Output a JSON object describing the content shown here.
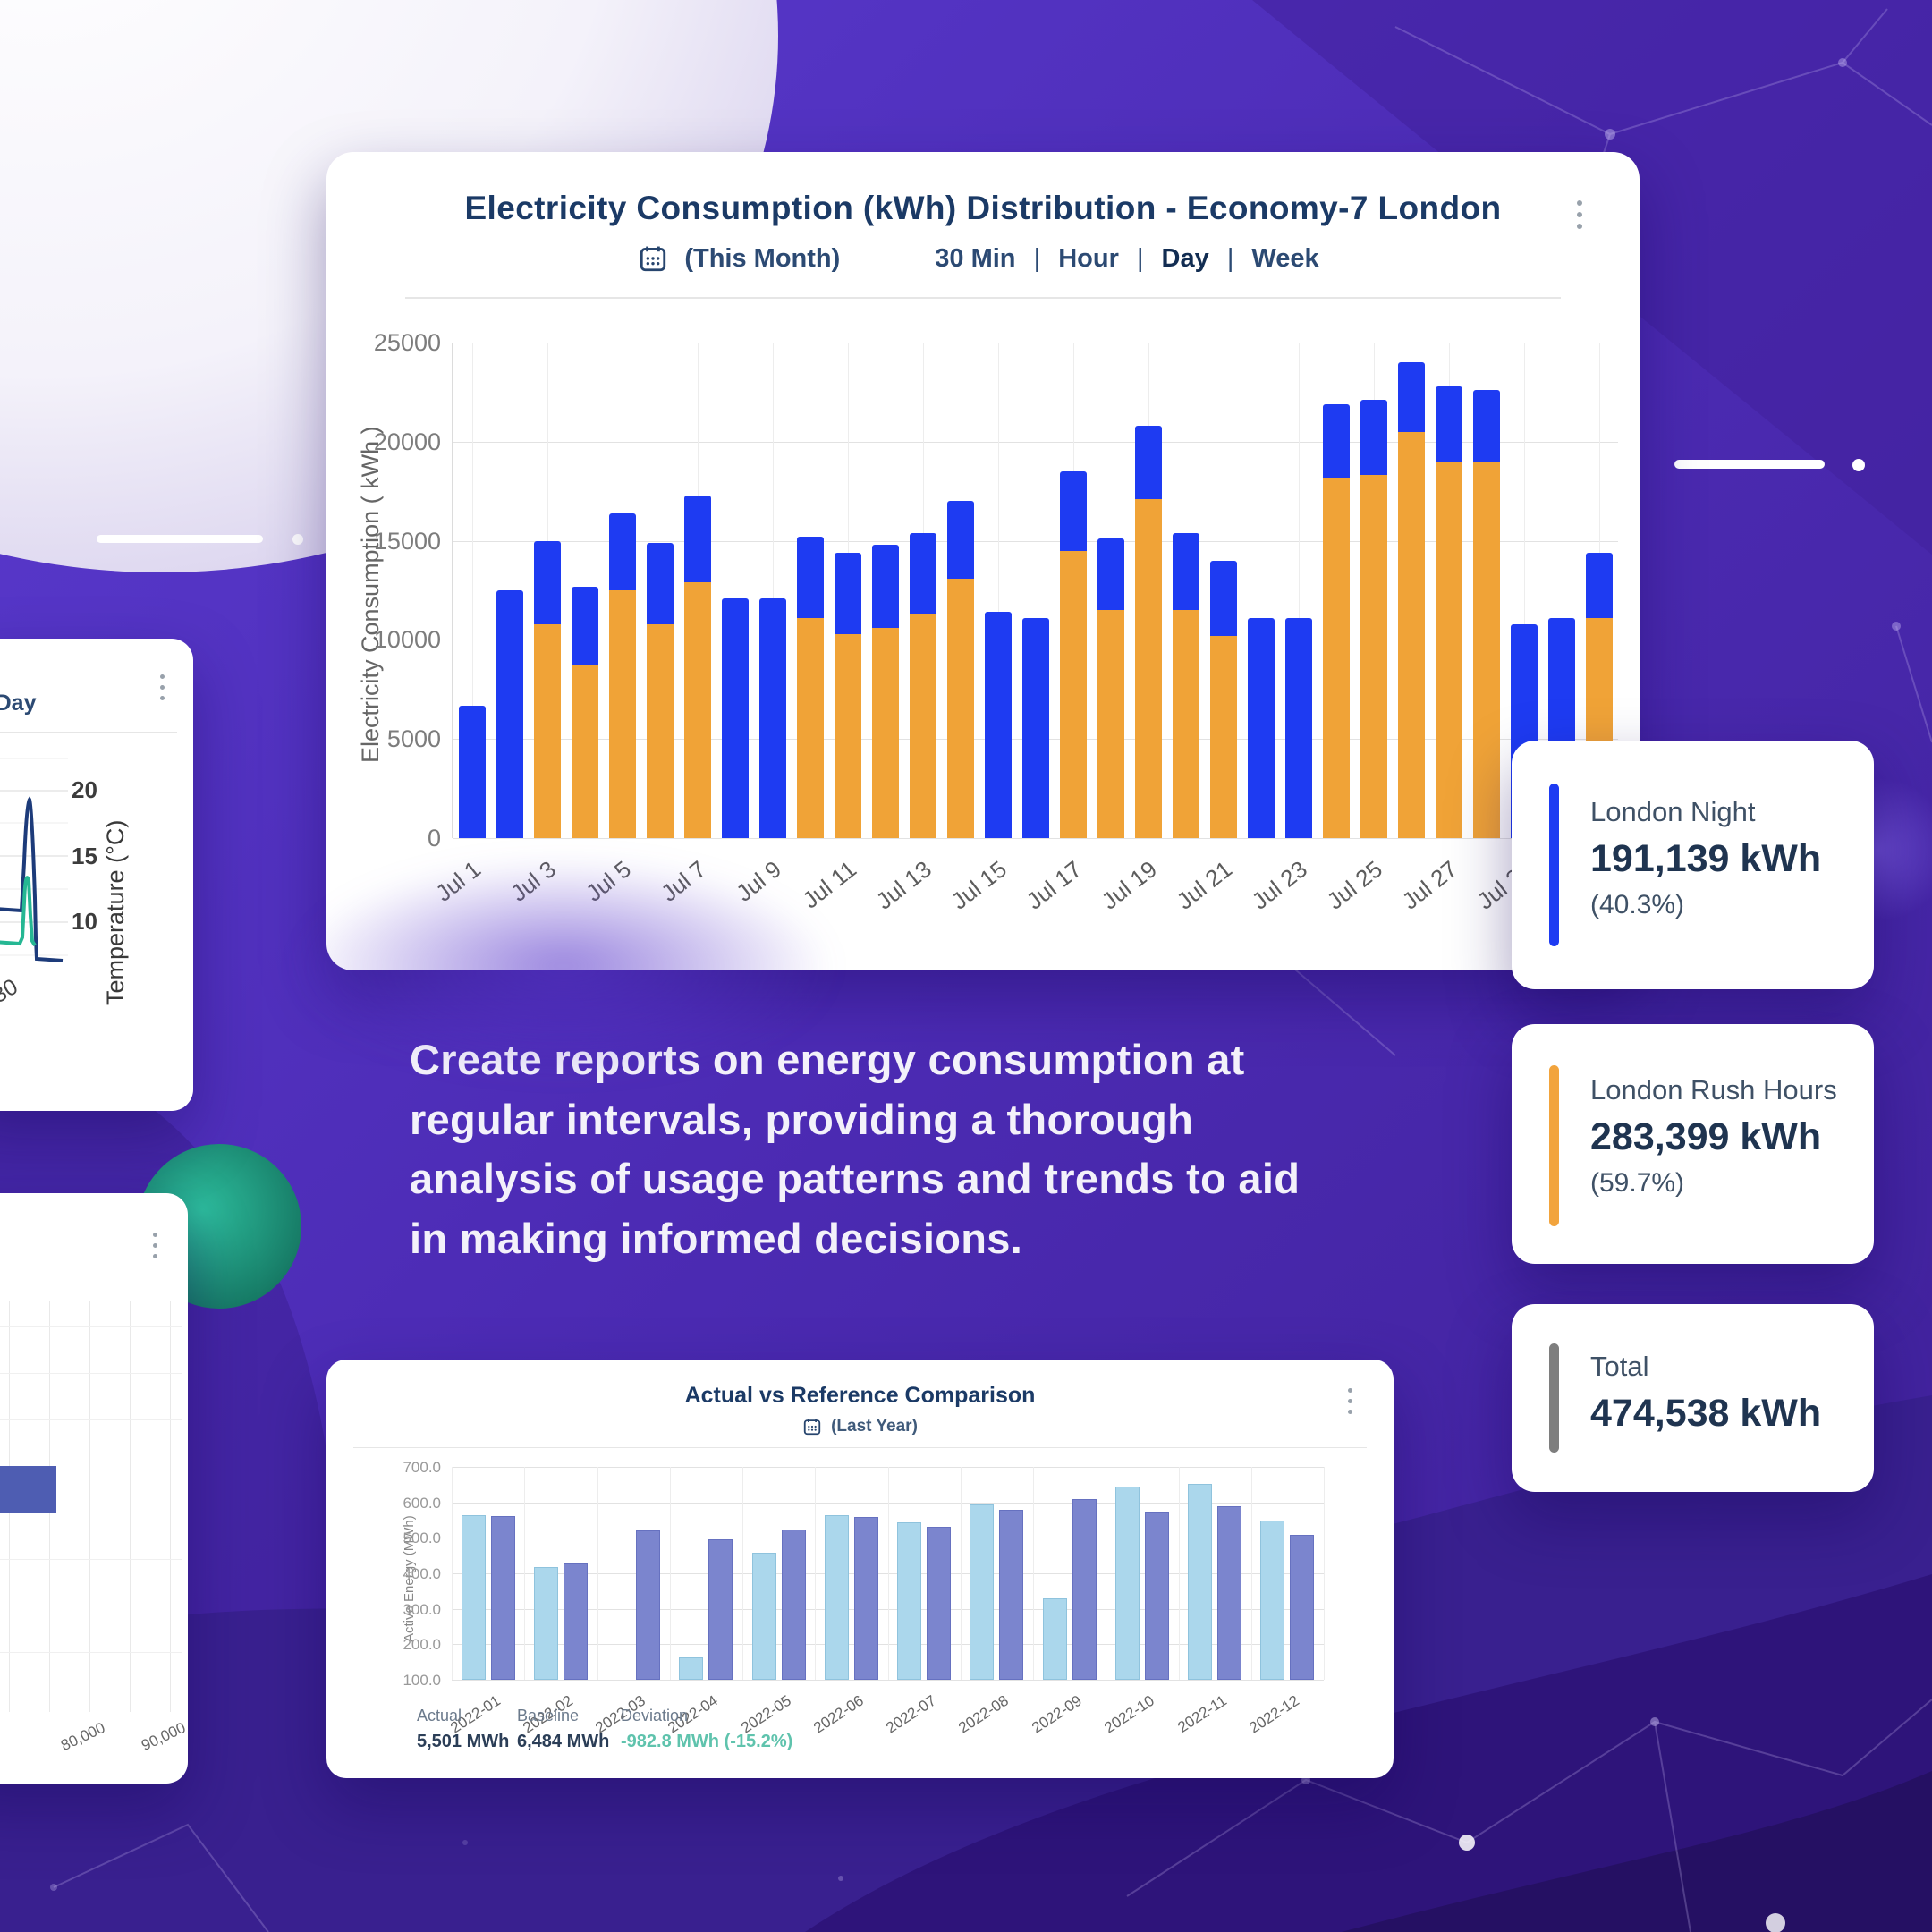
{
  "headline": "Create reports on energy consumption at regular intervals, providing a thorough analysis of usage patterns and trends to aid in making informed decisions.",
  "main_card": {
    "title": "Electricity Consumption (kWh) Distribution - Economy-7 London",
    "period_label": "(This Month)",
    "separator": "|",
    "intervals": [
      {
        "label": "30 Min",
        "active": false
      },
      {
        "label": "Hour",
        "active": false
      },
      {
        "label": "Day",
        "active": true
      },
      {
        "label": "Week",
        "active": false
      }
    ]
  },
  "comparison_card": {
    "title": "Actual vs Reference Comparison",
    "period_label": "(Last Year)"
  },
  "mini_temp_card": {
    "filter_fragment": "r | Day",
    "ylabel": "Temperature (°C)",
    "ytick_labels": [
      "20",
      "15",
      "10"
    ],
    "xtick_label": "30"
  },
  "mini_hbar_card": {
    "xtick_labels": [
      "80,000",
      "90,000"
    ],
    "bar_color": "#4E5DB2"
  },
  "stat_cards": [
    {
      "label": "London Night",
      "value": "191,139 kWh",
      "percent": "(40.3%)",
      "color": "#1E3BF2"
    },
    {
      "label": "London Rush Hours",
      "value": "283,399 kWh",
      "percent": "(59.7%)",
      "color": "#F2A43D"
    },
    {
      "label": "Total",
      "value": "474,538 kWh",
      "percent": "",
      "color": "#7E7E7E"
    }
  ],
  "chart_data": [
    {
      "id": "electricity_consumption_distribution",
      "type": "bar",
      "stacked": true,
      "title": "Electricity Consumption (kWh) Distribution - Economy-7 London",
      "ylabel": "Electricity Consumption ( kWh )",
      "ylim": [
        0,
        25000
      ],
      "ytick_labels": [
        "25000",
        "20000",
        "15000",
        "10000",
        "5000",
        "0"
      ],
      "grid": true,
      "categories": [
        "Jul 1",
        "Jul 2",
        "Jul 3",
        "Jul 4",
        "Jul 5",
        "Jul 6",
        "Jul 7",
        "Jul 8",
        "Jul 9",
        "Jul 10",
        "Jul 11",
        "Jul 12",
        "Jul 13",
        "Jul 14",
        "Jul 15",
        "Jul 16",
        "Jul 17",
        "Jul 18",
        "Jul 19",
        "Jul 20",
        "Jul 21",
        "Jul 22",
        "Jul 23",
        "Jul 24",
        "Jul 25",
        "Jul 26",
        "Jul 27",
        "Jul 28",
        "Jul 29",
        "Jul 30",
        "Jul 31"
      ],
      "xtick_labels": [
        "Jul 1",
        "Jul 3",
        "Jul 5",
        "Jul 7",
        "Jul 9",
        "Jul 11",
        "Jul 13",
        "Jul 15",
        "Jul 17",
        "Jul 19",
        "Jul 21",
        "Jul 23",
        "Jul 25",
        "Jul 27",
        "Jul 29"
      ],
      "series": [
        {
          "name": "London Rush Hours",
          "color": "#F0A337",
          "values": [
            0,
            0,
            10800,
            8700,
            12500,
            10800,
            12900,
            0,
            0,
            11100,
            10300,
            10600,
            11300,
            13100,
            0,
            0,
            14500,
            11500,
            17100,
            11500,
            10200,
            0,
            0,
            18200,
            18300,
            20500,
            19000,
            19000,
            0,
            0,
            11100
          ]
        },
        {
          "name": "London Night",
          "color": "#1E3BF2",
          "values": [
            6700,
            12500,
            4200,
            4000,
            3900,
            4100,
            4400,
            12100,
            12100,
            4100,
            4100,
            4200,
            4100,
            3900,
            11400,
            11100,
            4000,
            3600,
            3700,
            3900,
            3800,
            11100,
            11100,
            3700,
            3800,
            3500,
            3800,
            3600,
            10800,
            11100,
            3300
          ]
        }
      ]
    },
    {
      "id": "actual_vs_reference_comparison",
      "type": "bar",
      "title": "Actual vs Reference Comparison",
      "ylabel": "Active Energy (MWh)",
      "ylim": [
        100,
        700
      ],
      "ytick_labels": [
        "700.0",
        "600.0",
        "500.0",
        "400.0",
        "300.0",
        "200.0",
        "100.0"
      ],
      "grid": true,
      "categories": [
        "2022-01",
        "2022-02",
        "2022-03",
        "2022-04",
        "2022-05",
        "2022-06",
        "2022-07",
        "2022-08",
        "2022-09",
        "2022-10",
        "2022-11",
        "2022-12"
      ],
      "series": [
        {
          "name": "Actual",
          "color": "#ABD7EC",
          "border": "#8fc3dd",
          "values": [
            563,
            418,
            null,
            162,
            458,
            565,
            543,
            595,
            330,
            645,
            652,
            550
          ]
        },
        {
          "name": "Baseline",
          "color": "#7B85CE",
          "border": "#6671c0",
          "values": [
            562,
            428,
            520,
            495,
            523,
            560,
            530,
            578,
            610,
            575,
            590,
            508
          ]
        }
      ],
      "legend": [
        {
          "name": "Actual",
          "value": "5,501 MWh",
          "color": "#ABD7EC"
        },
        {
          "name": "Baseline",
          "value": "6,484 MWh",
          "color": "#6F7ACB"
        },
        {
          "name": "Deviation",
          "value": "-982.8 MWh (-15.2%)",
          "color": "#BDBDBD",
          "value_color": "#5FC3AD"
        }
      ]
    },
    {
      "id": "temperature_trend_partial",
      "type": "line",
      "ylabel": "Temperature (°C)",
      "ytick_labels": [
        "20",
        "15",
        "10"
      ],
      "xtick_labels": [
        "30"
      ],
      "filter_fragment": "r | Day",
      "series": [
        {
          "name": "temperature-dotted",
          "color": "#F2A43D"
        },
        {
          "name": "temperature-line-navy",
          "color": "#1D3B7A"
        },
        {
          "name": "temperature-line-teal",
          "color": "#25B793"
        }
      ]
    },
    {
      "id": "energy_histogram_partial",
      "type": "bar",
      "orientation": "horizontal",
      "xtick_labels": [
        "80,000",
        "90,000"
      ],
      "series": [
        {
          "name": "energy",
          "color": "#4E5DB2"
        }
      ]
    }
  ]
}
